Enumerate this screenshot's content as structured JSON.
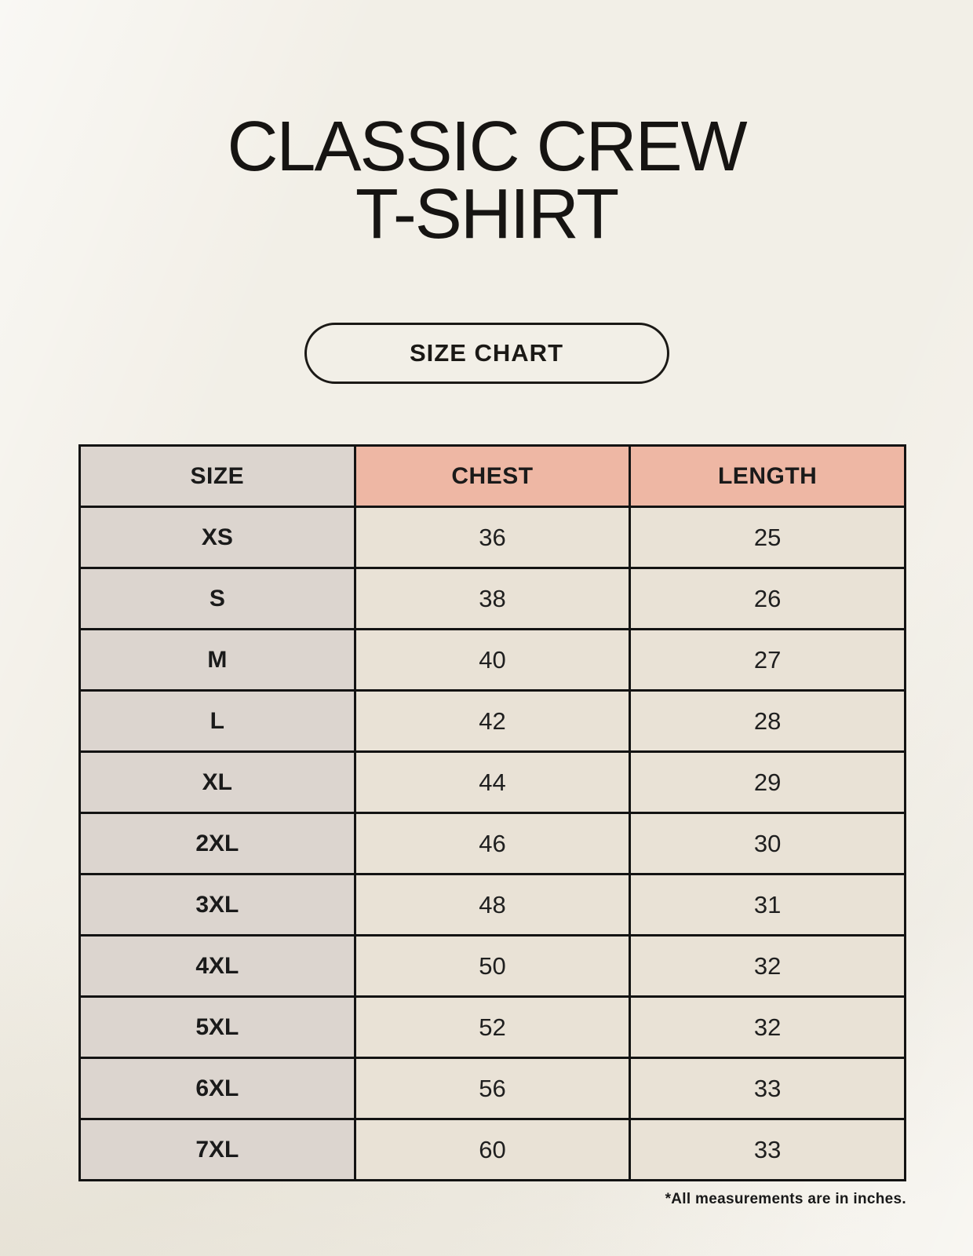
{
  "title": {
    "line1": "CLASSIC CREW",
    "line2": "T-SHIRT"
  },
  "size_chart_button": {
    "label": "SIZE CHART"
  },
  "footnote": "*All measurements are in inches.",
  "chart_data": {
    "type": "table",
    "title": "CLASSIC CREW T-SHIRT",
    "subtitle": "SIZE CHART",
    "columns": [
      "SIZE",
      "CHEST",
      "LENGTH"
    ],
    "units": "inches",
    "rows": [
      [
        "XS",
        "36",
        "25"
      ],
      [
        "S",
        "38",
        "26"
      ],
      [
        "M",
        "40",
        "27"
      ],
      [
        "L",
        "42",
        "28"
      ],
      [
        "XL",
        "44",
        "29"
      ],
      [
        "2XL",
        "46",
        "30"
      ],
      [
        "3XL",
        "48",
        "31"
      ],
      [
        "4XL",
        "50",
        "32"
      ],
      [
        "5XL",
        "52",
        "32"
      ],
      [
        "6XL",
        "56",
        "33"
      ],
      [
        "7XL",
        "60",
        "33"
      ]
    ]
  },
  "colors": {
    "background": "#f2efe7",
    "header_accent": "#eeb7a4",
    "size_column": "#dcd5cf",
    "data_cell": "#e9e2d6",
    "table_border": "#131313",
    "text": "#141414"
  }
}
